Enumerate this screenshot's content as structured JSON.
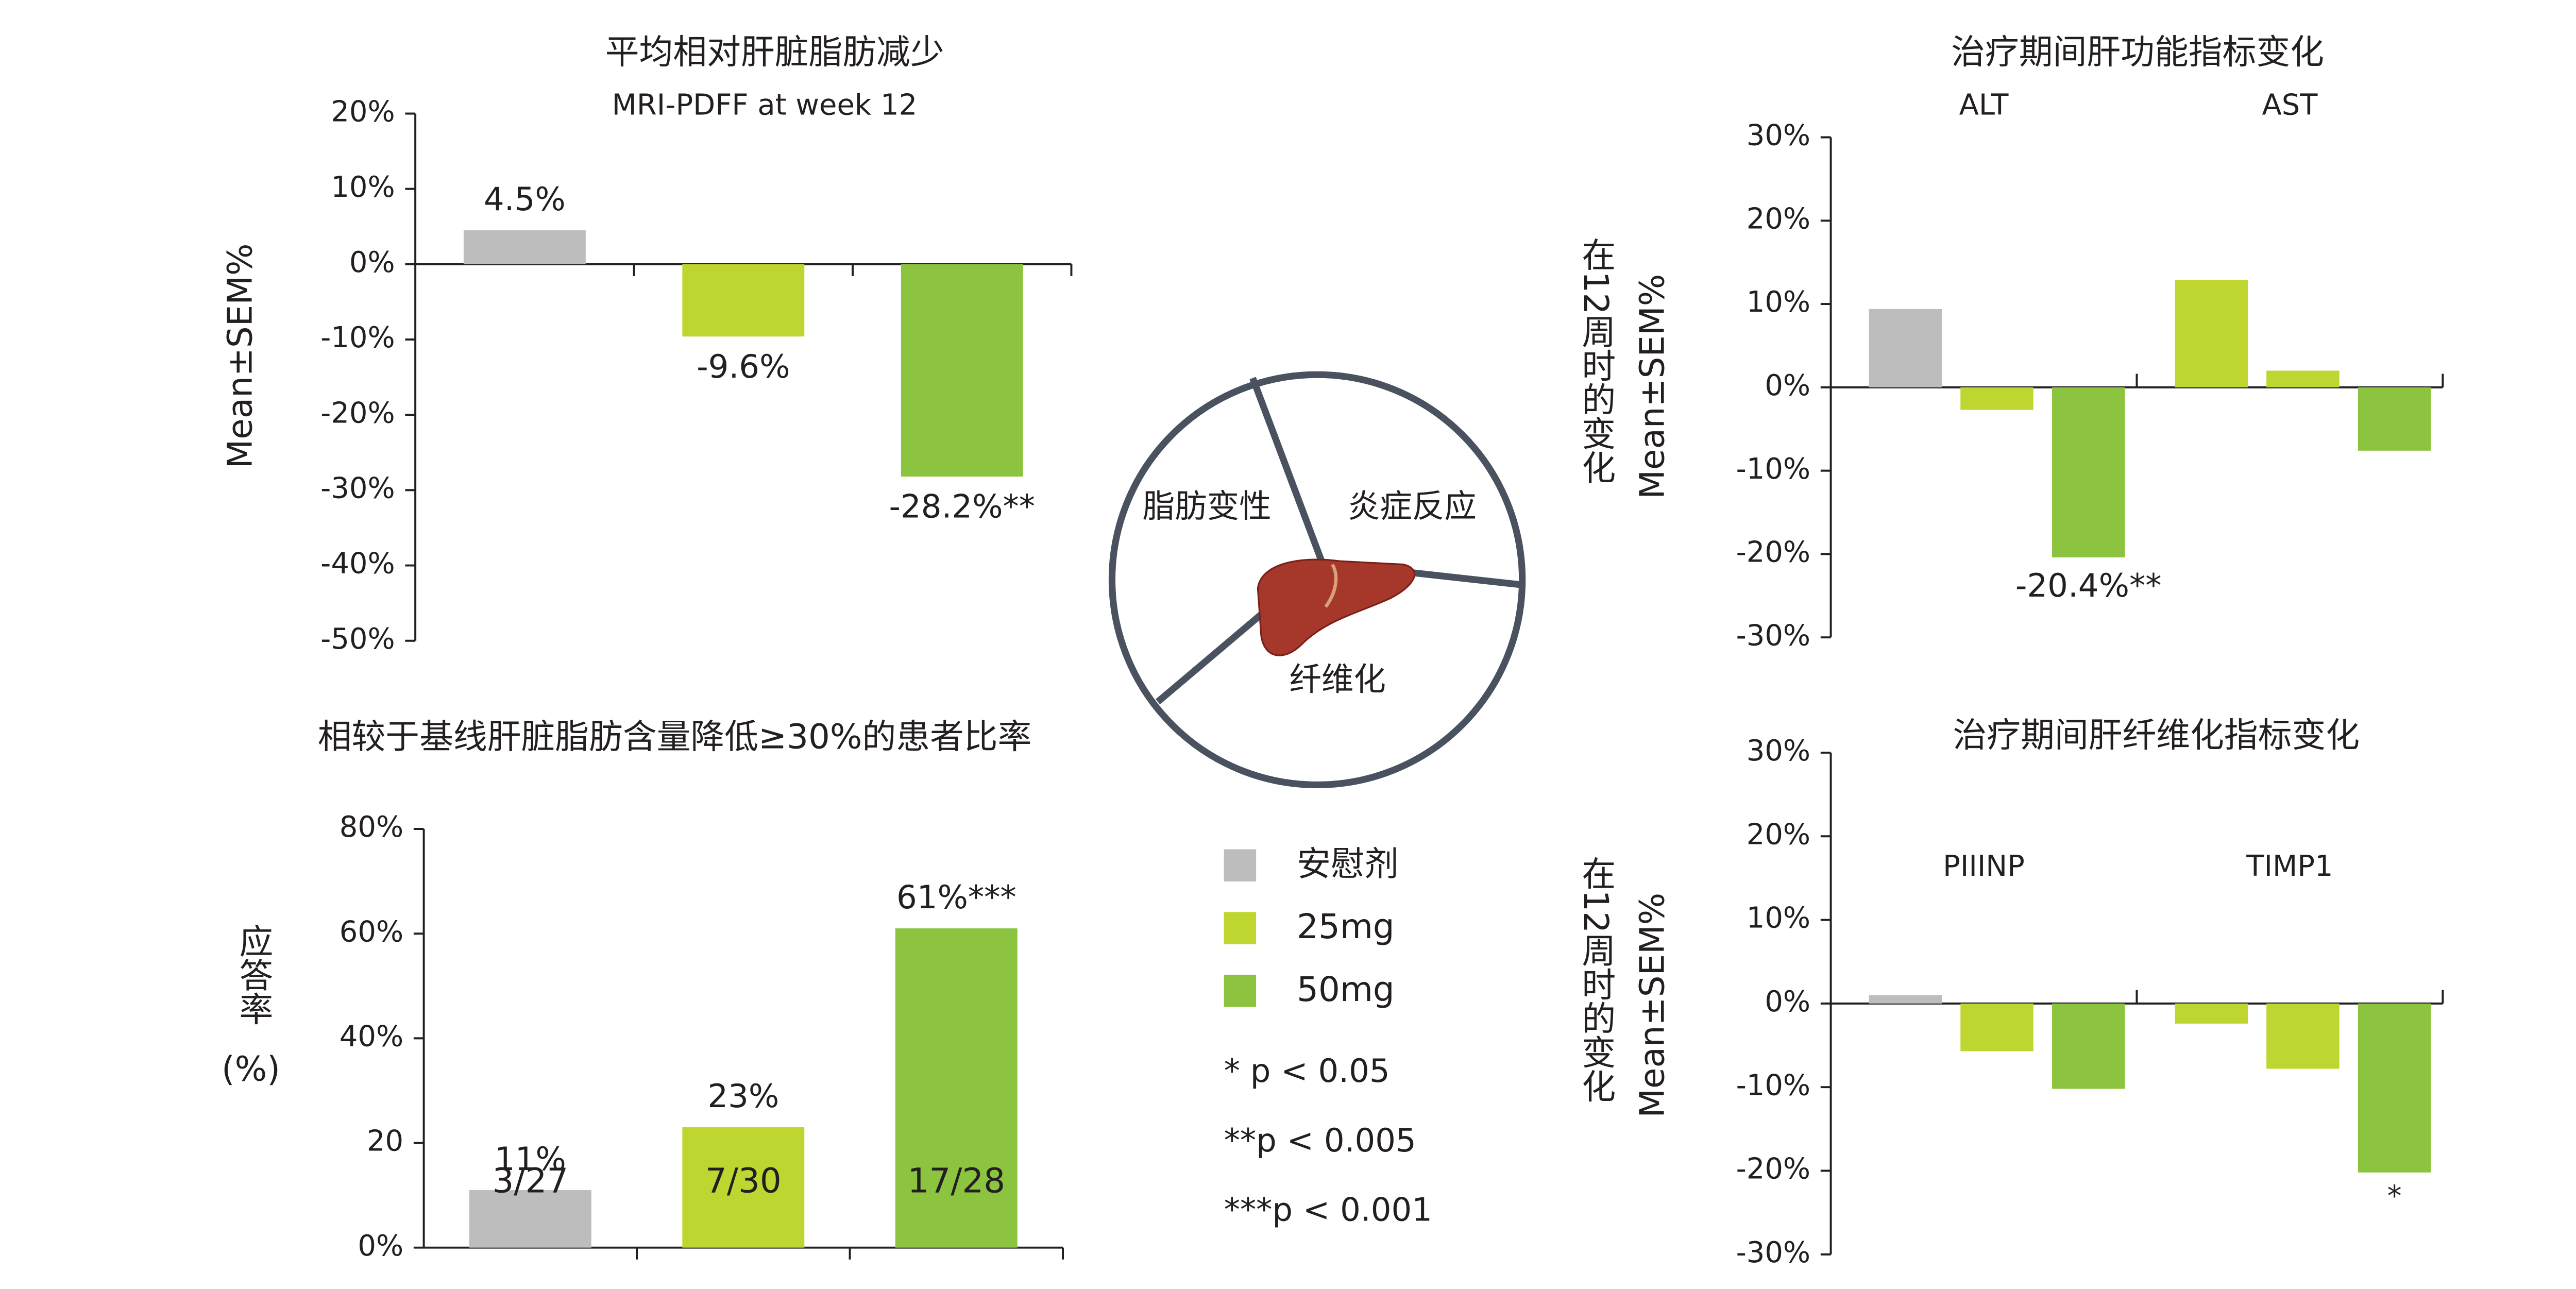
{
  "chart_data": [
    {
      "type": "bar",
      "title": "平均相对肝脏脂肪减少",
      "subtitle": "MRI-PDFF at week 12",
      "ylabel": "Mean±SEM%",
      "categories": [
        null,
        null,
        null
      ],
      "values": [
        4.5,
        -9.6,
        -28.2
      ],
      "value_labels": [
        "4.5%",
        "-9.6%",
        "-28.2%**"
      ],
      "colors": [
        "#bdbdbd",
        "#bed62f",
        "#8cc43f"
      ],
      "ylim": [
        -50,
        20
      ],
      "yticks": [
        {
          "value": -50,
          "label": "-50%"
        },
        {
          "value": -40,
          "label": "-40%"
        },
        {
          "value": -30,
          "label": "-30%"
        },
        {
          "value": -20,
          "label": "-20%"
        },
        {
          "value": -10,
          "label": "-10%"
        },
        {
          "value": 0,
          "label": "0%"
        },
        {
          "value": 10,
          "label": "10%"
        },
        {
          "value": 20,
          "label": "20%"
        }
      ]
    },
    {
      "type": "bar",
      "title": "相较于基线肝脏脂肪含量降低≥30%的患者比率",
      "ylabel": [
        "应答率",
        "(%)"
      ],
      "categories": [
        null,
        null,
        null
      ],
      "values": [
        11,
        23,
        61
      ],
      "value_labels": [
        "11%",
        "23%",
        "61%***"
      ],
      "bar_labels": [
        "3/27",
        "7/30",
        "17/28"
      ],
      "colors": [
        "#bdbdbd",
        "#bed62f",
        "#8cc43f"
      ],
      "ylim": [
        0,
        80
      ],
      "yticks": [
        {
          "value": 0,
          "label": "0%"
        },
        20,
        {
          "value": 40,
          "label": "40%"
        },
        {
          "value": 60,
          "label": "60%"
        },
        {
          "value": 80,
          "label": "80%"
        }
      ]
    },
    {
      "type": "grouped_bar",
      "title": "治疗期间肝功能指标变化",
      "ylabel": [
        "在12周时的变化",
        "Mean±SEM%"
      ],
      "categories": [
        "ALT",
        "AST"
      ],
      "series": [
        {
          "name": "安慰剂",
          "color": "#bdbdbd",
          "point_colors": [
            "#bdbdbd",
            "#bed62f"
          ],
          "values": [
            9.4,
            12.9
          ]
        },
        {
          "name": "25mg",
          "color": "#bed62f",
          "values": [
            -2.7,
            2.0
          ]
        },
        {
          "name": "50mg",
          "color": "#8cc43f",
          "values": [
            -20.4,
            -7.6
          ],
          "value_labels": [
            "-20.4%**",
            null
          ]
        }
      ],
      "ylim": [
        -30,
        30
      ],
      "yticks": [
        {
          "value": -30,
          "label": "-30%"
        },
        {
          "value": -20,
          "label": "-20%"
        },
        {
          "value": -10,
          "label": "-10%"
        },
        {
          "value": 0,
          "label": "0%"
        },
        {
          "value": 10,
          "label": "10%"
        },
        {
          "value": 20,
          "label": "20%"
        },
        {
          "value": 30,
          "label": "30%"
        }
      ]
    },
    {
      "type": "grouped_bar",
      "title": "治疗期间肝纤维化指标变化",
      "ylabel": [
        "在12周时的变化",
        "Mean±SEM%"
      ],
      "categories": [
        "PIIINP",
        "TIMP1"
      ],
      "series": [
        {
          "color": "#bdbdbd",
          "point_colors": [
            "#bdbdbd",
            "#bed62f"
          ],
          "values": [
            1.0,
            -2.4
          ]
        },
        {
          "color": "#bed62f",
          "values": [
            -5.7,
            -7.8
          ]
        },
        {
          "color": "#8cc43f",
          "values": [
            -10.2,
            -20.2
          ],
          "annotations": [
            null,
            "*"
          ]
        }
      ],
      "ylim": [
        -30,
        30
      ],
      "yticks": [
        {
          "value": -30,
          "label": "-30%"
        },
        {
          "value": -20,
          "label": "-20%"
        },
        {
          "value": -10,
          "label": "-10%"
        },
        {
          "value": 0,
          "label": "0%"
        },
        {
          "value": 10,
          "label": "10%"
        },
        {
          "value": 20,
          "label": "20%"
        },
        {
          "value": 30,
          "label": "30%"
        }
      ]
    }
  ],
  "diagram": {
    "labels": [
      "脂肪变性",
      "炎症反应",
      "纤维化"
    ]
  },
  "notes": [
    "* p < 0.05",
    "**p < 0.005",
    "***p < 0.001"
  ]
}
